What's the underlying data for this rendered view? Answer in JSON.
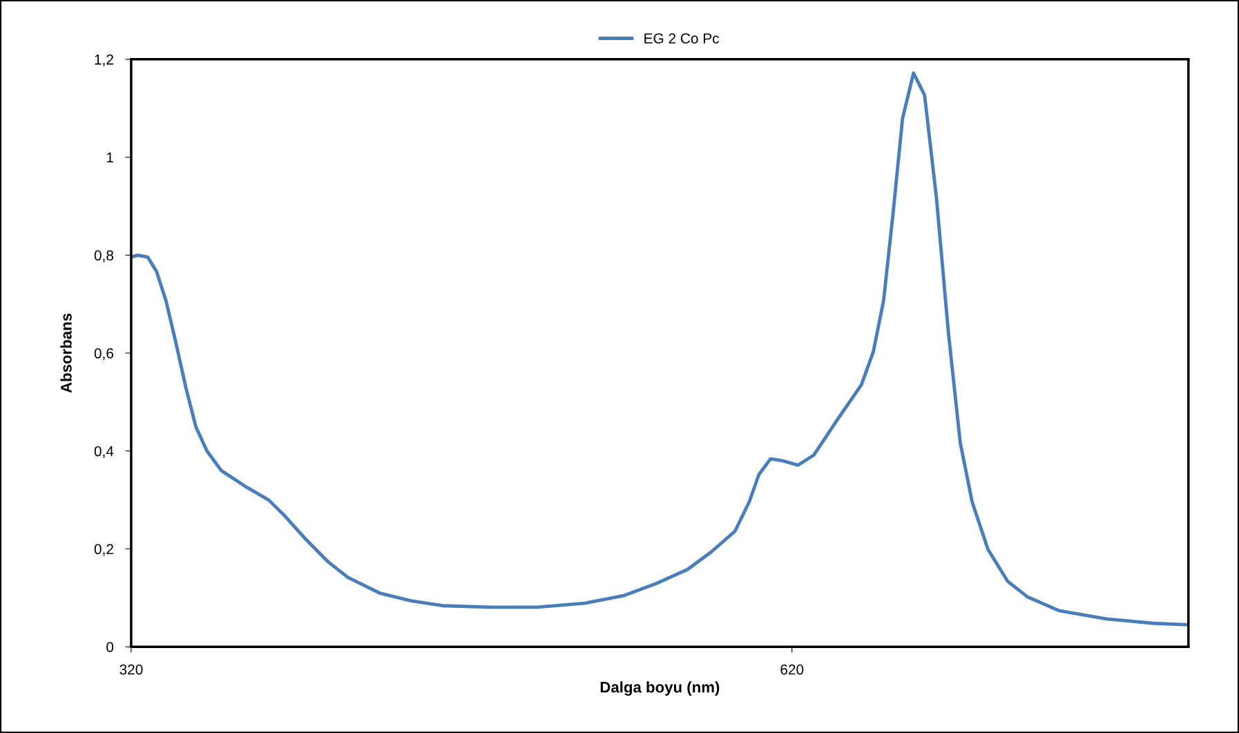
{
  "chart_data": {
    "type": "line",
    "xlabel": "Dalga boyu (nm)",
    "ylabel": "Absorbans",
    "xlim": [
      320,
      800
    ],
    "xticks": [
      320,
      620
    ],
    "ylim": [
      0,
      1.2
    ],
    "yticks": [
      {
        "value": 0,
        "label": "0"
      },
      {
        "value": 0.2,
        "label": "0,2"
      },
      {
        "value": 0.4,
        "label": "0,4"
      },
      {
        "value": 0.6,
        "label": "0,6"
      },
      {
        "value": 0.8,
        "label": "0,8"
      },
      {
        "value": 1,
        "label": "1"
      },
      {
        "value": 1.2,
        "label": "1,2"
      }
    ],
    "grid": false,
    "legend": "top",
    "marker": "none",
    "line_style": "solid",
    "series": [
      {
        "name": "EG 2 Co Pc",
        "color": "#4a7ebb",
        "x": [
          320,
          323,
          327.5,
          331.5,
          335.8,
          340,
          344.8,
          349.4,
          354.4,
          360.9,
          371.7,
          382.4,
          389.6,
          398.6,
          409.3,
          418.3,
          432.7,
          447,
          461.4,
          483,
          504.4,
          526,
          544,
          558.3,
          572.6,
          583.4,
          594.1,
          600.6,
          605,
          610.3,
          615.7,
          622.8,
          630,
          640.8,
          651.5,
          656.9,
          661.6,
          665.9,
          670.2,
          675.2,
          680.2,
          685.6,
          691,
          696.4,
          701.8,
          709,
          717.9,
          726.9,
          741.2,
          762.8,
          784.3,
          800
        ],
        "values": [
          0.796,
          0.8,
          0.796,
          0.767,
          0.707,
          0.627,
          0.53,
          0.449,
          0.4,
          0.36,
          0.328,
          0.3,
          0.268,
          0.223,
          0.174,
          0.142,
          0.11,
          0.094,
          0.084,
          0.081,
          0.081,
          0.089,
          0.105,
          0.129,
          0.158,
          0.194,
          0.236,
          0.296,
          0.352,
          0.384,
          0.38,
          0.371,
          0.392,
          0.465,
          0.535,
          0.602,
          0.707,
          0.885,
          1.079,
          1.172,
          1.127,
          0.917,
          0.643,
          0.417,
          0.296,
          0.199,
          0.134,
          0.102,
          0.074,
          0.057,
          0.048,
          0.045
        ]
      }
    ]
  }
}
